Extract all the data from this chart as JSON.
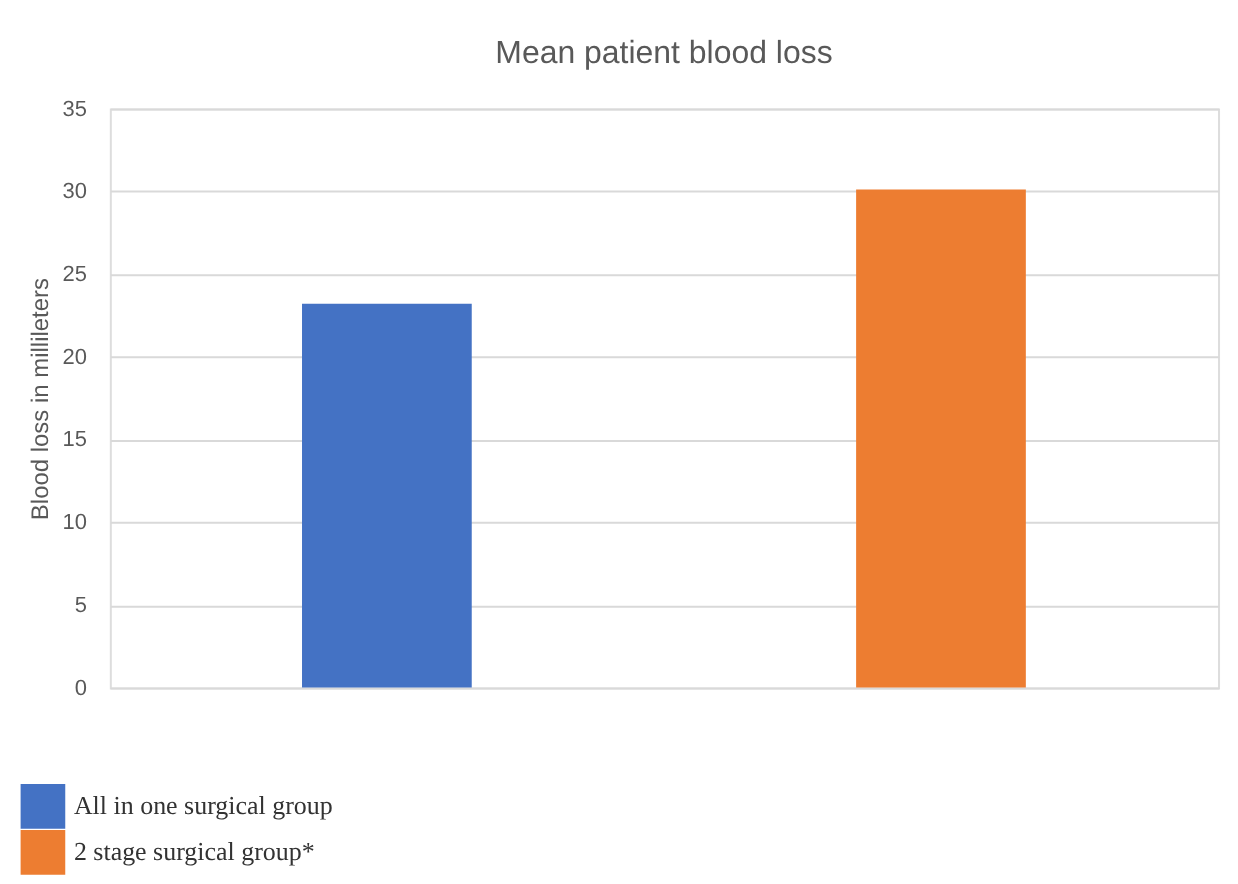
{
  "chart_data": {
    "type": "bar",
    "title": "Mean patient blood loss",
    "ylabel": "Blood loss in millileters",
    "categories": [
      null,
      null
    ],
    "series": [
      {
        "name": "All in one surgical group",
        "color": "#4472c4",
        "values": [
          23.2,
          null
        ]
      },
      {
        "name": "2 stage surgical group*",
        "color": "#ed7d31",
        "values": [
          null,
          30.1
        ]
      }
    ],
    "ylim": [
      0,
      35
    ],
    "yticks": [
      0,
      5,
      10,
      15,
      20,
      25,
      30,
      35
    ],
    "grid": "y",
    "legend": "bottom left",
    "tick_labels": "y"
  }
}
